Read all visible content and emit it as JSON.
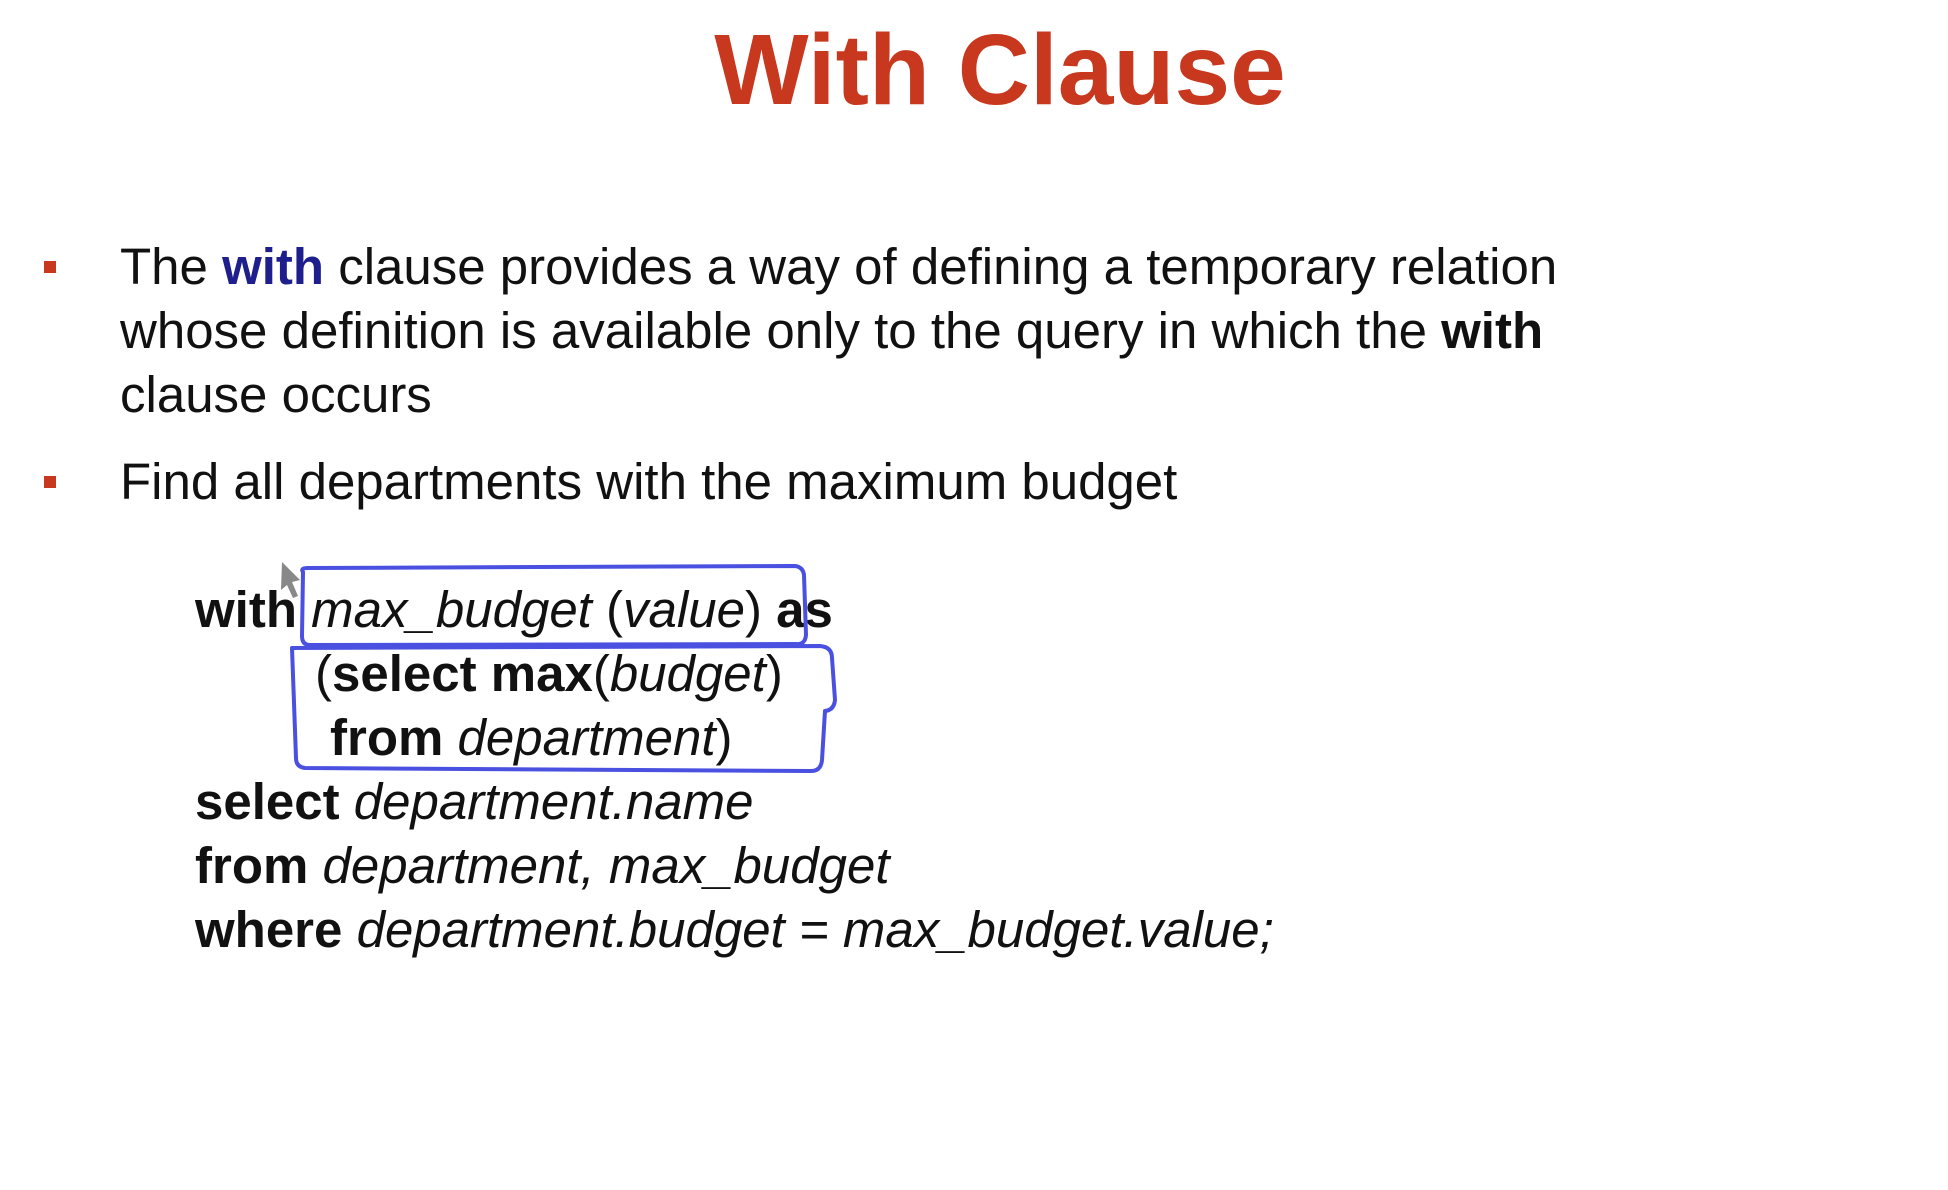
{
  "slide": {
    "title": "With Clause",
    "bullets": [
      {
        "parts": [
          {
            "text": "The ",
            "style": "normal"
          },
          {
            "text": "with",
            "style": "keyword-blue"
          },
          {
            "text": " clause provides a way of defining a temporary relation",
            "style": "normal"
          },
          {
            "text": "whose definition is available only to the query in which the ",
            "style": "normal"
          },
          {
            "text": "with",
            "style": "keyword"
          },
          {
            "text": "clause occurs",
            "style": "normal"
          }
        ]
      },
      {
        "text": "Find all departments with the maximum budget"
      }
    ],
    "code": {
      "line1": {
        "kw1": "with",
        "name": "max_budget",
        "paren_open": " (",
        "col": "value",
        "paren_close": ")",
        "kw2": "as"
      },
      "line2": {
        "paren": "(",
        "kw": "select max",
        "paren2": "(",
        "arg": "budget",
        "paren3": ")"
      },
      "line3": {
        "kw": "from",
        "rel": "department",
        "paren": ")"
      },
      "line4": {
        "kw": "select",
        "expr": "department.name"
      },
      "line5": {
        "kw": "from",
        "expr": "department, max_budget"
      },
      "line6": {
        "kw": "where",
        "expr": "department.budget = max_budget.value;"
      }
    },
    "colors": {
      "title": "#c8381e",
      "bullet": "#c8381e",
      "keyword_blue": "#1e1e8c",
      "annotation": "#4a50e0"
    }
  }
}
